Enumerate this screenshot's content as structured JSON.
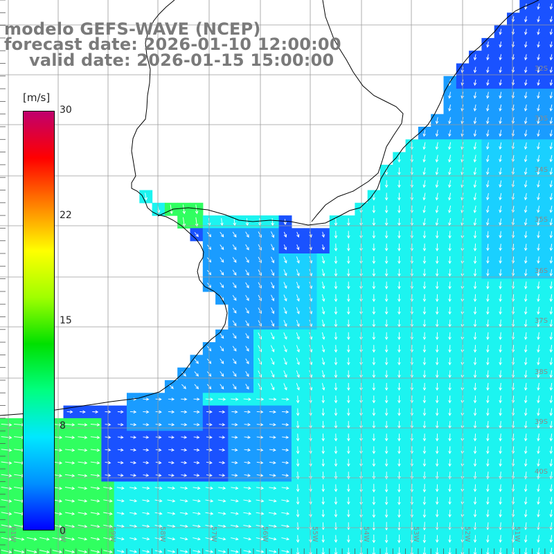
{
  "title": {
    "line1": "modelo GEFS-WAVE (NCEP)",
    "line2": "forecast date: 2026-01-10 12:00:00",
    "line3": "valid date: 2026-01-15 15:00:00"
  },
  "colorbar": {
    "unit": "[m/s]",
    "ticks": [
      "30",
      "22",
      "15",
      "8",
      "0"
    ],
    "min": 0,
    "max": 30,
    "stops": [
      "#0000ff",
      "#0090ff",
      "#00e8ff",
      "#00ff80",
      "#00e000",
      "#a0ff00",
      "#ffff00",
      "#ff8000",
      "#ff0000",
      "#c0006e"
    ]
  },
  "map": {
    "field": "wind speed and direction",
    "lat_labels": [
      "32S",
      "33S",
      "34S",
      "35S",
      "36S",
      "37S",
      "38S",
      "39S",
      "40S"
    ],
    "lon_labels": [
      "61W",
      "60W",
      "59W",
      "58W",
      "57W",
      "56W",
      "55W",
      "54W",
      "53W",
      "52W",
      "51W"
    ],
    "colors": {
      "land": "#ffffff",
      "deep_blue": "#1a52ff",
      "mid_blue": "#1a9cff",
      "light_blue": "#1ad0ff",
      "cyan": "#1cf4f0",
      "green": "#30ff60",
      "coast": "#000000",
      "arrows": "#ffffff"
    }
  }
}
